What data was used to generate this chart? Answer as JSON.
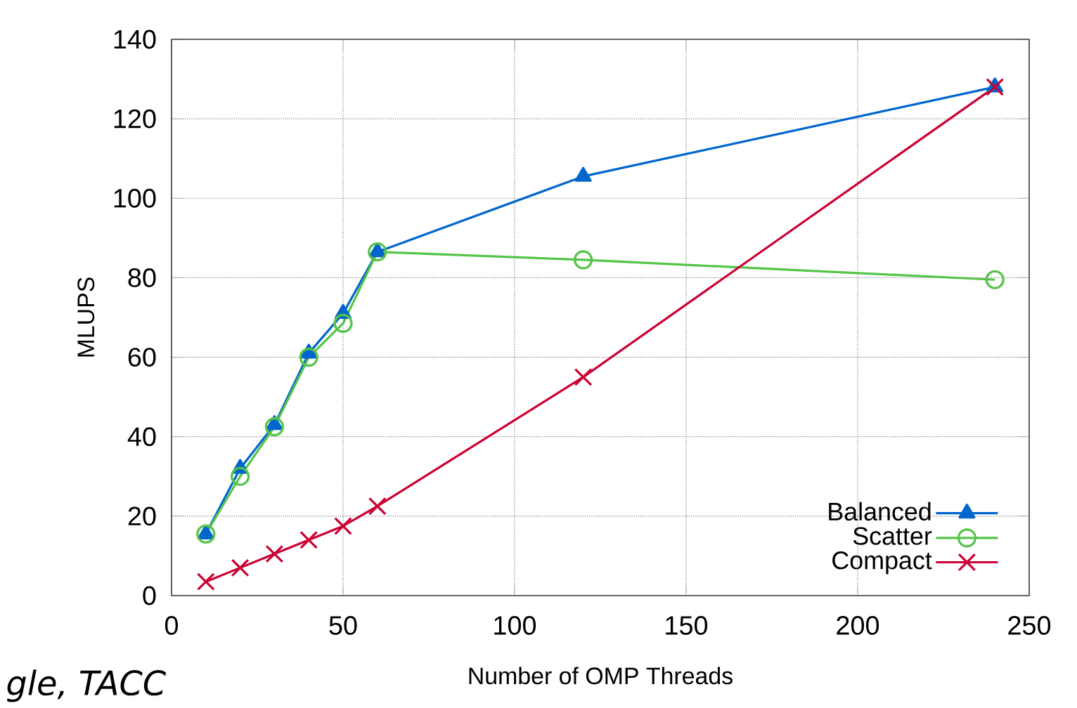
{
  "chart_data": {
    "type": "line",
    "xlabel": "Number of OMP Threads",
    "ylabel": "MLUPS",
    "x": [
      10,
      20,
      30,
      40,
      50,
      60,
      120,
      240
    ],
    "series": [
      {
        "name": "Balanced",
        "color": "#0066cc",
        "marker": "triangle",
        "values": [
          15.5,
          32,
          43,
          61,
          71,
          86.5,
          105.5,
          128
        ]
      },
      {
        "name": "Scatter",
        "color": "#55c448",
        "marker": "circle",
        "values": [
          15.5,
          30,
          42.5,
          60,
          68.5,
          86.5,
          84.5,
          79.5
        ]
      },
      {
        "name": "Compact",
        "color": "#cc0033",
        "marker": "cross",
        "values": [
          3.5,
          7,
          10.5,
          14,
          17.5,
          22.5,
          55,
          128
        ]
      }
    ],
    "xlim": [
      0,
      250
    ],
    "xticks": [
      0,
      50,
      100,
      150,
      200,
      250
    ],
    "ylim": [
      0,
      140
    ],
    "yticks": [
      0,
      20,
      40,
      60,
      80,
      100,
      120,
      140
    ],
    "grid": true,
    "legend": "bottom right",
    "line_style": "solid",
    "annotations": [
      "*gle, TACC*"
    ]
  }
}
